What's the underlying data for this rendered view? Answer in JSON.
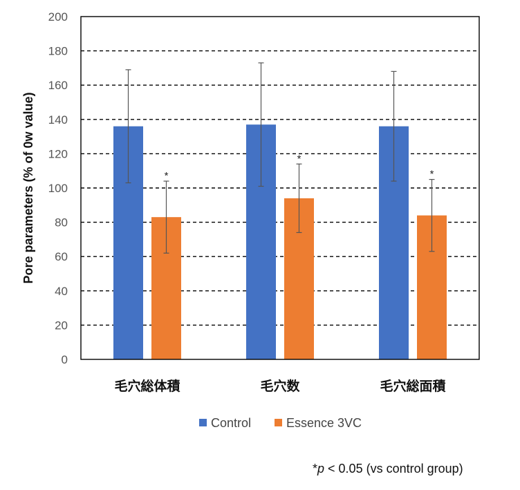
{
  "chart_data": {
    "type": "bar",
    "categories": [
      "毛穴総体積",
      "毛穴数",
      "毛穴総面積"
    ],
    "series": [
      {
        "name": "Control",
        "values": [
          136,
          137,
          136
        ],
        "errors": [
          33,
          36,
          32
        ],
        "color": "#4472C4"
      },
      {
        "name": "Essence 3VC",
        "values": [
          83,
          94,
          84
        ],
        "errors": [
          21,
          20,
          21
        ],
        "color": "#ED7D31"
      }
    ],
    "significance_marker": "*",
    "ylabel": "Pore parameters   (% of 0w value)",
    "ylim": [
      0,
      200
    ],
    "yticks": [
      0,
      20,
      40,
      60,
      80,
      100,
      120,
      140,
      160,
      180,
      200
    ],
    "grid": true,
    "legend_position": "bottom"
  },
  "footnote": {
    "star": "*",
    "p": "p",
    "rest": " < 0.05 (vs control group)"
  }
}
